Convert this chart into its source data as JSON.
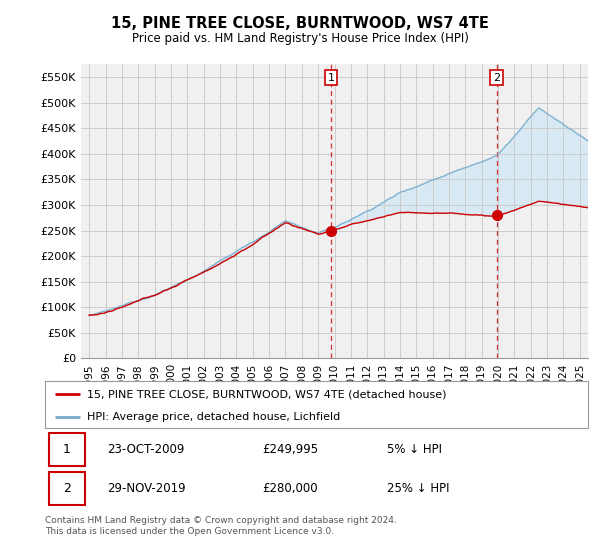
{
  "title": "15, PINE TREE CLOSE, BURNTWOOD, WS7 4TE",
  "subtitle": "Price paid vs. HM Land Registry's House Price Index (HPI)",
  "ylabel_ticks": [
    "£0",
    "£50K",
    "£100K",
    "£150K",
    "£200K",
    "£250K",
    "£300K",
    "£350K",
    "£400K",
    "£450K",
    "£500K",
    "£550K"
  ],
  "ylim": [
    0,
    575000
  ],
  "yticks": [
    0,
    50000,
    100000,
    150000,
    200000,
    250000,
    300000,
    350000,
    400000,
    450000,
    500000,
    550000
  ],
  "legend_line1": "15, PINE TREE CLOSE, BURNTWOOD, WS7 4TE (detached house)",
  "legend_line2": "HPI: Average price, detached house, Lichfield",
  "sale1_date": "23-OCT-2009",
  "sale1_price": "£249,995",
  "sale1_hpi": "5% ↓ HPI",
  "sale1_x": 2009.79,
  "sale1_y": 249995,
  "sale2_date": "29-NOV-2019",
  "sale2_price": "£280,000",
  "sale2_hpi": "25% ↓ HPI",
  "sale2_x": 2019.91,
  "sale2_y": 280000,
  "footnote": "Contains HM Land Registry data © Crown copyright and database right 2024.\nThis data is licensed under the Open Government Licence v3.0.",
  "red_color": "#cc0000",
  "blue_color": "#7aadcc",
  "fill_color": "#d6e8f5",
  "grid_color": "#cccccc",
  "plot_bg_color": "#f0f0f0",
  "xmin": 1994.5,
  "xmax": 2025.5
}
